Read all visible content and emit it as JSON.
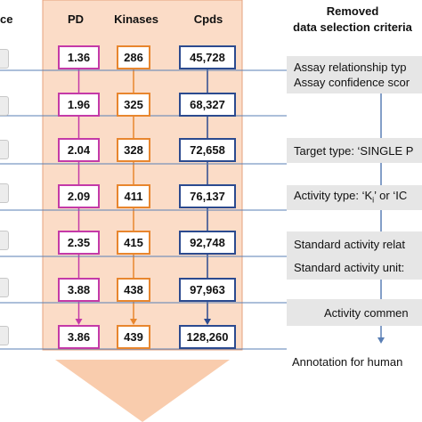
{
  "headers": {
    "left_fragment": "ce",
    "pd": "PD",
    "kinases": "Kinases",
    "cpds": "Cpds",
    "removed_line1": "Removed",
    "removed_line2": "data selection criteria"
  },
  "rows": [
    {
      "pd": "1.36",
      "kinases": "286",
      "cpds": "45,728"
    },
    {
      "pd": "1.96",
      "kinases": "325",
      "cpds": "68,327"
    },
    {
      "pd": "2.04",
      "kinases": "328",
      "cpds": "72,658"
    },
    {
      "pd": "2.09",
      "kinases": "411",
      "cpds": "76,137"
    },
    {
      "pd": "2.35",
      "kinases": "415",
      "cpds": "92,748"
    },
    {
      "pd": "3.88",
      "kinases": "438",
      "cpds": "97,963"
    },
    {
      "pd": "3.86",
      "kinases": "439",
      "cpds": "128,260"
    }
  ],
  "criteria": [
    {
      "line1": "Assay relationship typ",
      "line2": "Assay confidence scor"
    },
    {
      "line1": "Target type: ‘SINGLE P"
    },
    {
      "line1": "Activity type: ‘K",
      "sub": "i",
      "line1_rest": "’ or ‘IC"
    },
    {
      "line1": "Standard activity relat"
    },
    {
      "line1": "Standard activity unit:"
    },
    {
      "line1": "Activity commen"
    },
    {
      "line1": "Annotation for human"
    }
  ],
  "colors": {
    "panel": "#fbdcc7",
    "panel_border": "#e6a27c",
    "arrow": "#f9ccad",
    "pd": "#c43aa8",
    "kinases": "#e8862e",
    "cpds": "#2b4a8f",
    "connector": "#5a7fb5",
    "criteria_bg": "#e6e6e6"
  }
}
